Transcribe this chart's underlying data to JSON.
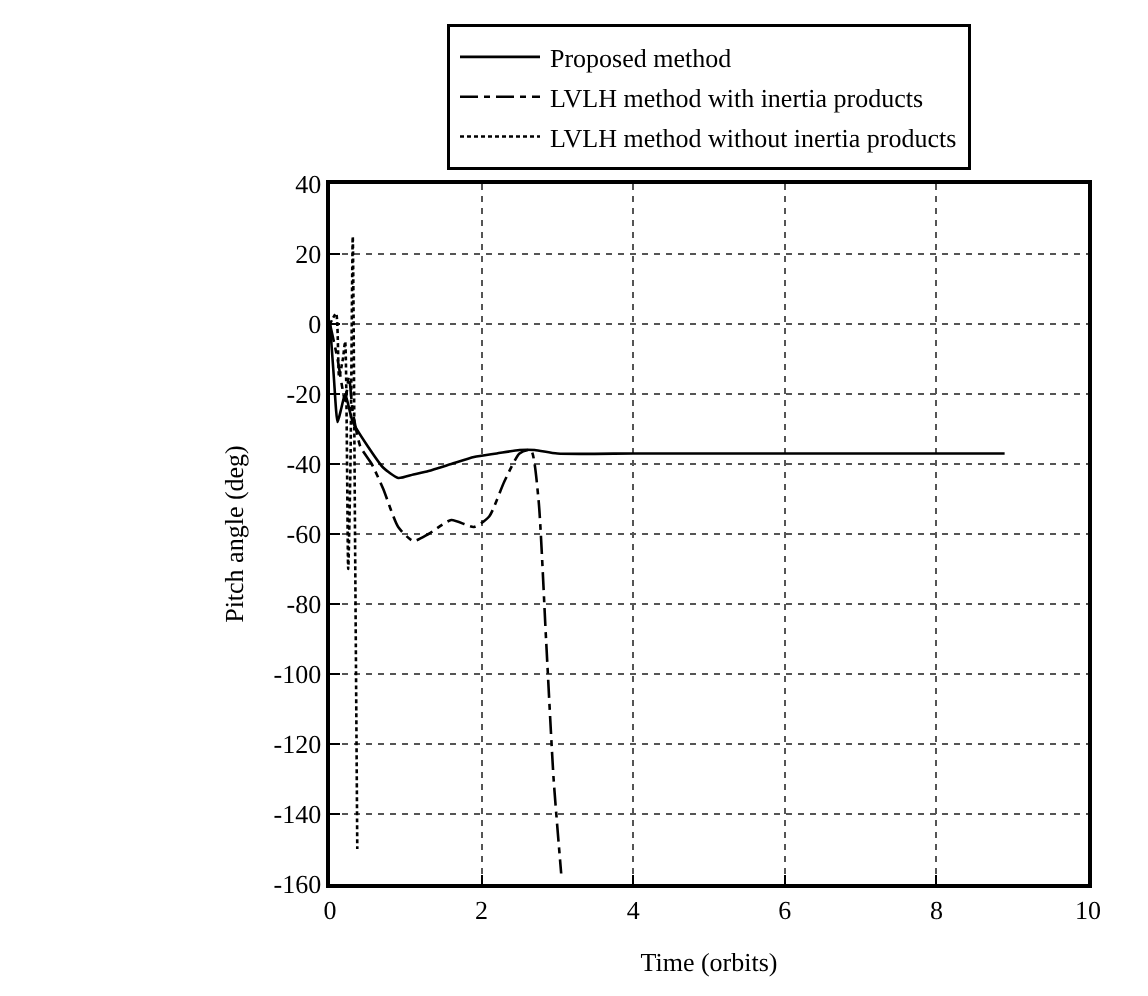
{
  "chart_data": {
    "type": "line",
    "xlabel": "Time (orbits)",
    "ylabel": "Pitch angle (deg)",
    "xlim": [
      0,
      10
    ],
    "xticks": [
      0,
      2,
      4,
      6,
      8,
      10
    ],
    "ylim": [
      -160,
      40
    ],
    "yticks": [
      -160,
      -140,
      -120,
      -100,
      -80,
      -60,
      -40,
      -20,
      0,
      20,
      40
    ],
    "grid": true,
    "legend": "top",
    "marker": "none",
    "series": [
      {
        "name": "Proposed method",
        "color": "#000000",
        "line_style": "solid",
        "x": [
          0,
          0.05,
          0.1,
          0.15,
          0.2,
          0.3,
          0.5,
          0.7,
          0.9,
          1.1,
          1.3,
          1.6,
          1.9,
          2.2,
          2.5,
          2.7,
          3.0,
          4,
          5,
          6,
          7,
          8,
          8.9
        ],
        "values": [
          0,
          -15,
          -28,
          -24,
          -20,
          -28,
          -35,
          -41,
          -44,
          -43,
          -42,
          -40,
          -38,
          -37,
          -36,
          -36,
          -37,
          -37,
          -37,
          -37,
          -37,
          -37,
          -37
        ]
      },
      {
        "name": "LVLH method with inertia products",
        "color": "#000000",
        "line_style": "dashdot",
        "x": [
          0,
          0.1,
          0.2,
          0.25,
          0.3,
          0.4,
          0.55,
          0.7,
          0.9,
          1.1,
          1.3,
          1.6,
          1.9,
          2.1,
          2.3,
          2.5,
          2.65,
          2.75,
          2.85,
          2.95,
          3.05
        ],
        "values": [
          0,
          -10,
          -22,
          -15,
          -25,
          -35,
          -40,
          -47,
          -58,
          -62,
          -60,
          -56,
          -58,
          -55,
          -45,
          -37,
          -36,
          -50,
          -90,
          -130,
          -157
        ]
      },
      {
        "name": "LVLH method without inertia products",
        "color": "#000000",
        "line_style": "dotted",
        "x": [
          0,
          0.08,
          0.12,
          0.17,
          0.2,
          0.24,
          0.27,
          0.3,
          0.33,
          0.36
        ],
        "values": [
          0,
          3,
          -15,
          -10,
          -5,
          -70,
          -40,
          25,
          -60,
          -150
        ]
      }
    ]
  }
}
